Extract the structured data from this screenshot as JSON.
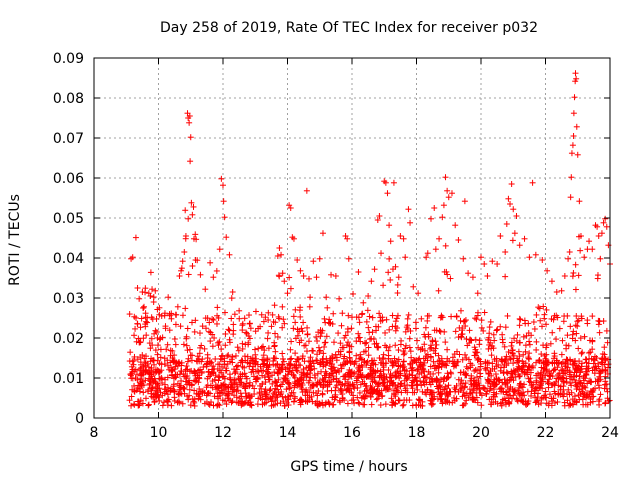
{
  "chart_data": {
    "type": "scatter",
    "title": "Day 258 of 2019, Rate Of TEC Index for receiver p032",
    "xlabel": "GPS time / hours",
    "ylabel": "ROTI / TECUs",
    "xlim": [
      8,
      24
    ],
    "ylim": [
      0,
      0.09
    ],
    "xticks": [
      "8",
      "10",
      "12",
      "14",
      "16",
      "18",
      "20",
      "22",
      "24"
    ],
    "yticks": [
      "0",
      "0.01",
      "0.02",
      "0.03",
      "0.04",
      "0.05",
      "0.06",
      "0.07",
      "0.08",
      "0.09"
    ],
    "grid": true,
    "marker": "+",
    "color": "#ff0000",
    "series": [
      {
        "name": "ROTI",
        "points": [
          [
            9.15,
            0.0398
          ],
          [
            9.2,
            0.0402
          ],
          [
            9.3,
            0.0451
          ],
          [
            9.35,
            0.0325
          ],
          [
            9.4,
            0.0298
          ],
          [
            9.5,
            0.0315
          ],
          [
            9.55,
            0.0278
          ],
          [
            9.6,
            0.0262
          ],
          [
            9.7,
            0.0312
          ],
          [
            9.75,
            0.0305
          ],
          [
            9.8,
            0.0322
          ],
          [
            9.85,
            0.029
          ],
          [
            9.9,
            0.0318
          ],
          [
            9.95,
            0.0215
          ],
          [
            10.1,
            0.0255
          ],
          [
            10.2,
            0.0262
          ],
          [
            10.3,
            0.0302
          ],
          [
            10.4,
            0.0248
          ],
          [
            10.55,
            0.0258
          ],
          [
            10.6,
            0.0278
          ],
          [
            10.65,
            0.0355
          ],
          [
            10.7,
            0.0368
          ],
          [
            10.75,
            0.0392
          ],
          [
            10.8,
            0.0415
          ],
          [
            10.85,
            0.0455
          ],
          [
            10.9,
            0.0762
          ],
          [
            10.92,
            0.075
          ],
          [
            10.95,
            0.0738
          ],
          [
            10.97,
            0.0755
          ],
          [
            11.0,
            0.0702
          ],
          [
            10.98,
            0.0642
          ],
          [
            11.02,
            0.0538
          ],
          [
            11.05,
            0.0508
          ],
          [
            11.1,
            0.0448
          ],
          [
            11.15,
            0.0395
          ],
          [
            11.3,
            0.0358
          ],
          [
            11.45,
            0.0322
          ],
          [
            11.6,
            0.0388
          ],
          [
            11.7,
            0.0352
          ],
          [
            11.9,
            0.0422
          ],
          [
            11.95,
            0.0598
          ],
          [
            12.0,
            0.0582
          ],
          [
            12.02,
            0.0542
          ],
          [
            12.05,
            0.0502
          ],
          [
            12.1,
            0.0452
          ],
          [
            12.2,
            0.0408
          ],
          [
            12.3,
            0.0315
          ],
          [
            12.5,
            0.0268
          ],
          [
            12.6,
            0.0232
          ],
          [
            12.8,
            0.0205
          ],
          [
            13.0,
            0.0158
          ],
          [
            13.2,
            0.0258
          ],
          [
            13.4,
            0.0245
          ],
          [
            13.6,
            0.0282
          ],
          [
            13.7,
            0.0405
          ],
          [
            13.75,
            0.0425
          ],
          [
            13.8,
            0.0408
          ],
          [
            13.85,
            0.0362
          ],
          [
            13.9,
            0.0342
          ],
          [
            14.0,
            0.0312
          ],
          [
            14.05,
            0.0532
          ],
          [
            14.1,
            0.0525
          ],
          [
            14.15,
            0.0452
          ],
          [
            14.2,
            0.0448
          ],
          [
            14.3,
            0.0395
          ],
          [
            14.4,
            0.0368
          ],
          [
            14.5,
            0.0355
          ],
          [
            14.6,
            0.0568
          ],
          [
            14.7,
            0.0302
          ],
          [
            14.8,
            0.0392
          ],
          [
            14.9,
            0.0352
          ],
          [
            15.0,
            0.0398
          ],
          [
            15.1,
            0.0462
          ],
          [
            15.2,
            0.0302
          ],
          [
            15.35,
            0.0358
          ],
          [
            15.5,
            0.0355
          ],
          [
            15.6,
            0.0298
          ],
          [
            15.7,
            0.0262
          ],
          [
            15.8,
            0.0455
          ],
          [
            15.85,
            0.0448
          ],
          [
            15.9,
            0.0398
          ],
          [
            16.0,
            0.0252
          ],
          [
            16.2,
            0.0365
          ],
          [
            16.35,
            0.0288
          ],
          [
            16.5,
            0.0305
          ],
          [
            16.6,
            0.0342
          ],
          [
            16.7,
            0.0372
          ],
          [
            16.8,
            0.0495
          ],
          [
            16.85,
            0.0505
          ],
          [
            16.9,
            0.0412
          ],
          [
            17.0,
            0.0592
          ],
          [
            17.05,
            0.0588
          ],
          [
            17.1,
            0.0562
          ],
          [
            17.15,
            0.0482
          ],
          [
            17.2,
            0.0442
          ],
          [
            17.3,
            0.0588
          ],
          [
            17.35,
            0.0378
          ],
          [
            17.45,
            0.0352
          ],
          [
            17.5,
            0.0455
          ],
          [
            17.6,
            0.0448
          ],
          [
            17.65,
            0.0402
          ],
          [
            17.75,
            0.0522
          ],
          [
            17.8,
            0.0488
          ],
          [
            17.9,
            0.0328
          ],
          [
            18.05,
            0.0312
          ],
          [
            18.15,
            0.0248
          ],
          [
            18.3,
            0.0402
          ],
          [
            18.35,
            0.0412
          ],
          [
            18.45,
            0.0498
          ],
          [
            18.55,
            0.0525
          ],
          [
            18.6,
            0.0422
          ],
          [
            18.7,
            0.0448
          ],
          [
            18.8,
            0.0502
          ],
          [
            18.85,
            0.0532
          ],
          [
            18.9,
            0.0602
          ],
          [
            18.95,
            0.0568
          ],
          [
            19.0,
            0.0552
          ],
          [
            19.1,
            0.0562
          ],
          [
            19.2,
            0.0482
          ],
          [
            19.3,
            0.0445
          ],
          [
            19.45,
            0.0398
          ],
          [
            19.5,
            0.0542
          ],
          [
            19.6,
            0.0362
          ],
          [
            19.75,
            0.0352
          ],
          [
            19.9,
            0.0312
          ],
          [
            20.0,
            0.0402
          ],
          [
            20.1,
            0.0385
          ],
          [
            20.2,
            0.0355
          ],
          [
            20.35,
            0.0392
          ],
          [
            20.5,
            0.0385
          ],
          [
            20.6,
            0.0455
          ],
          [
            20.75,
            0.0415
          ],
          [
            20.8,
            0.0485
          ],
          [
            20.85,
            0.0548
          ],
          [
            20.9,
            0.0535
          ],
          [
            20.95,
            0.0585
          ],
          [
            21.0,
            0.0522
          ],
          [
            21.05,
            0.0462
          ],
          [
            21.1,
            0.0505
          ],
          [
            21.2,
            0.0432
          ],
          [
            21.35,
            0.0448
          ],
          [
            21.5,
            0.0402
          ],
          [
            21.6,
            0.0588
          ],
          [
            21.7,
            0.0408
          ],
          [
            21.9,
            0.0395
          ],
          [
            22.05,
            0.0368
          ],
          [
            22.2,
            0.0342
          ],
          [
            22.35,
            0.0315
          ],
          [
            22.5,
            0.0318
          ],
          [
            22.6,
            0.0355
          ],
          [
            22.7,
            0.0398
          ],
          [
            22.75,
            0.0415
          ],
          [
            22.78,
            0.0552
          ],
          [
            22.8,
            0.0602
          ],
          [
            22.82,
            0.0662
          ],
          [
            22.85,
            0.0682
          ],
          [
            22.87,
            0.0705
          ],
          [
            22.88,
            0.0762
          ],
          [
            22.9,
            0.0802
          ],
          [
            22.92,
            0.0842
          ],
          [
            22.93,
            0.0862
          ],
          [
            22.95,
            0.0848
          ],
          [
            22.97,
            0.0728
          ],
          [
            23.0,
            0.0658
          ],
          [
            23.05,
            0.0542
          ],
          [
            23.1,
            0.0455
          ],
          [
            23.2,
            0.0402
          ],
          [
            23.3,
            0.0422
          ],
          [
            23.35,
            0.0442
          ],
          [
            23.45,
            0.0422
          ],
          [
            23.55,
            0.0482
          ],
          [
            23.6,
            0.0478
          ],
          [
            23.65,
            0.0455
          ],
          [
            23.7,
            0.0398
          ],
          [
            23.75,
            0.0462
          ],
          [
            23.8,
            0.0488
          ],
          [
            23.85,
            0.0498
          ],
          [
            23.9,
            0.0478
          ],
          [
            23.95,
            0.0432
          ],
          [
            24.0,
            0.0385
          ]
        ]
      }
    ]
  }
}
